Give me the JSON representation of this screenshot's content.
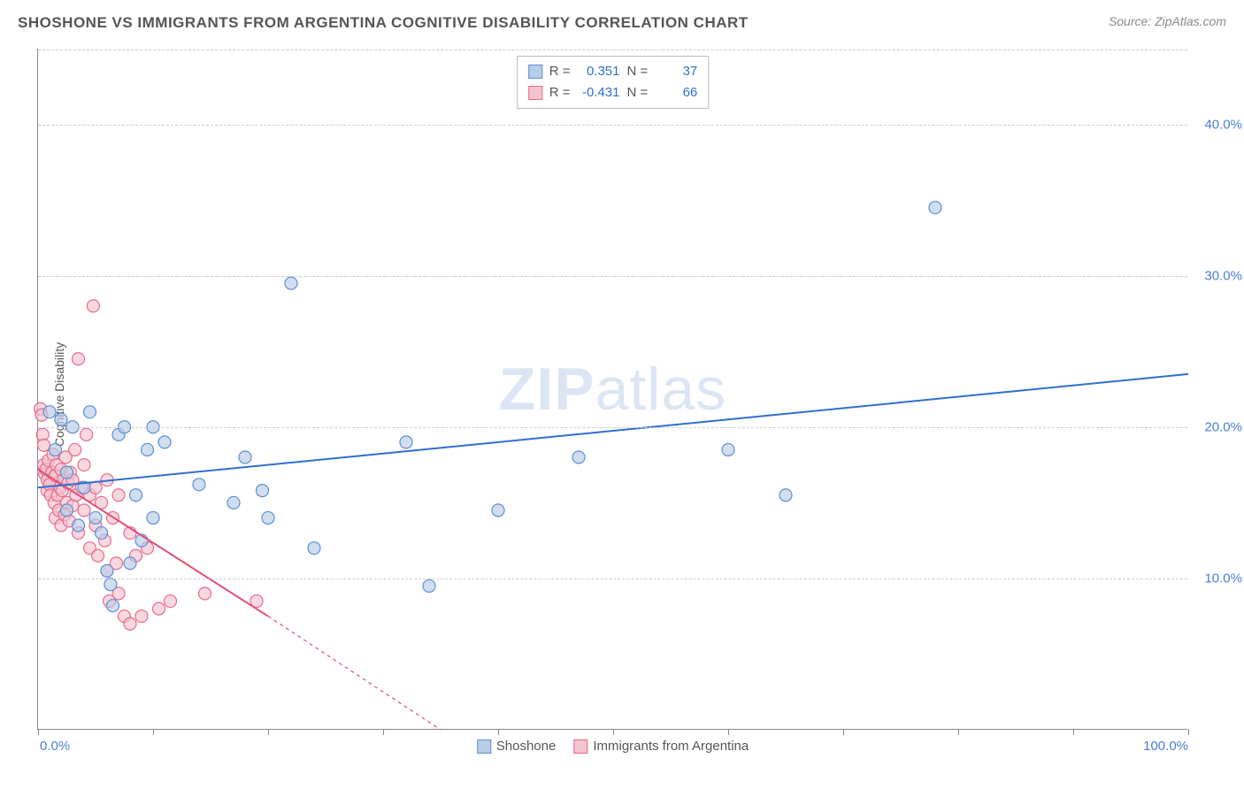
{
  "title": "SHOSHONE VS IMMIGRANTS FROM ARGENTINA COGNITIVE DISABILITY CORRELATION CHART",
  "source_prefix": "Source: ",
  "source": "ZipAtlas.com",
  "ylabel": "Cognitive Disability",
  "watermark_a": "ZIP",
  "watermark_b": "atlas",
  "chart": {
    "type": "scatter",
    "xlim": [
      0,
      100
    ],
    "ylim": [
      0,
      45
    ],
    "xtick_positions": [
      0,
      10,
      20,
      30,
      40,
      50,
      60,
      70,
      80,
      90,
      100
    ],
    "xtick_labels": {
      "0": "0.0%",
      "100": "100.0%"
    },
    "ytick_positions": [
      10,
      20,
      30,
      40
    ],
    "ytick_labels": {
      "10": "10.0%",
      "20": "20.0%",
      "30": "30.0%",
      "40": "40.0%"
    },
    "xtick_color": "#4a7fd6",
    "grid_color": "#cccccc",
    "axis_color": "#888888",
    "background": "#ffffff",
    "marker_radius": 7,
    "marker_stroke_width": 1.2,
    "line_width": 2,
    "series": [
      {
        "name": "Shoshone",
        "fill": "#b8cde8",
        "stroke": "#5b8fd6",
        "line_color": "#2f6fd0",
        "stats": {
          "R": "0.351",
          "N": "37"
        },
        "regression": {
          "x1": 0,
          "y1": 16.0,
          "x2": 100,
          "y2": 23.5
        },
        "points": [
          [
            1,
            21
          ],
          [
            1.5,
            18.5
          ],
          [
            2,
            20.5
          ],
          [
            2.5,
            17
          ],
          [
            2.5,
            14.5
          ],
          [
            3,
            20
          ],
          [
            3.5,
            13.5
          ],
          [
            4,
            16
          ],
          [
            4.5,
            21
          ],
          [
            5,
            14
          ],
          [
            5.5,
            13
          ],
          [
            6,
            10.5
          ],
          [
            6.3,
            9.6
          ],
          [
            6.5,
            8.2
          ],
          [
            7,
            19.5
          ],
          [
            7.5,
            20
          ],
          [
            8,
            11
          ],
          [
            8.5,
            15.5
          ],
          [
            9,
            12.5
          ],
          [
            9.5,
            18.5
          ],
          [
            10,
            20
          ],
          [
            10,
            14
          ],
          [
            11,
            19
          ],
          [
            14,
            16.2
          ],
          [
            17,
            15
          ],
          [
            18,
            18
          ],
          [
            19.5,
            15.8
          ],
          [
            20,
            14
          ],
          [
            22,
            29.5
          ],
          [
            24,
            12
          ],
          [
            32,
            19
          ],
          [
            34,
            9.5
          ],
          [
            40,
            14.5
          ],
          [
            47,
            18
          ],
          [
            60,
            18.5
          ],
          [
            65,
            15.5
          ],
          [
            78,
            34.5
          ]
        ]
      },
      {
        "name": "Immigrants from Argentina",
        "fill": "#f5c3cf",
        "stroke": "#e86a8a",
        "line_color": "#e24d74",
        "stats": {
          "R": "-0.431",
          "N": "66"
        },
        "regression": {
          "x1": 0,
          "y1": 17.2,
          "x2": 20,
          "y2": 7.5
        },
        "regression_ext": {
          "x1": 20,
          "y1": 7.5,
          "x2": 35,
          "y2": 0
        },
        "points": [
          [
            0.2,
            21.2
          ],
          [
            0.3,
            20.8
          ],
          [
            0.4,
            19.5
          ],
          [
            0.5,
            18.8
          ],
          [
            0.5,
            17.5
          ],
          [
            0.6,
            16.9
          ],
          [
            0.7,
            17.2
          ],
          [
            0.8,
            16.5
          ],
          [
            0.8,
            15.8
          ],
          [
            0.9,
            17.8
          ],
          [
            1.0,
            16.2
          ],
          [
            1.1,
            15.5
          ],
          [
            1.2,
            17.0
          ],
          [
            1.3,
            18.2
          ],
          [
            1.4,
            15.0
          ],
          [
            1.5,
            16.8
          ],
          [
            1.5,
            14.0
          ],
          [
            1.6,
            17.5
          ],
          [
            1.7,
            15.5
          ],
          [
            1.8,
            14.5
          ],
          [
            1.9,
            16.0
          ],
          [
            2.0,
            17.2
          ],
          [
            2.0,
            13.5
          ],
          [
            2.1,
            15.8
          ],
          [
            2.2,
            16.5
          ],
          [
            2.3,
            14.2
          ],
          [
            2.4,
            18.0
          ],
          [
            2.5,
            15.0
          ],
          [
            2.6,
            16.3
          ],
          [
            2.7,
            13.8
          ],
          [
            2.8,
            17.0
          ],
          [
            3.0,
            16.5
          ],
          [
            3.0,
            14.8
          ],
          [
            3.2,
            18.5
          ],
          [
            3.3,
            15.5
          ],
          [
            3.5,
            24.5
          ],
          [
            3.5,
            13.0
          ],
          [
            3.8,
            16.0
          ],
          [
            4.0,
            17.5
          ],
          [
            4.0,
            14.5
          ],
          [
            4.2,
            19.5
          ],
          [
            4.5,
            15.5
          ],
          [
            4.5,
            12.0
          ],
          [
            4.8,
            28.0
          ],
          [
            5.0,
            16.0
          ],
          [
            5.0,
            13.5
          ],
          [
            5.2,
            11.5
          ],
          [
            5.5,
            15.0
          ],
          [
            5.8,
            12.5
          ],
          [
            6.0,
            16.5
          ],
          [
            6.0,
            10.5
          ],
          [
            6.2,
            8.5
          ],
          [
            6.5,
            14.0
          ],
          [
            6.8,
            11.0
          ],
          [
            7.0,
            15.5
          ],
          [
            7.0,
            9.0
          ],
          [
            7.5,
            7.5
          ],
          [
            8.0,
            13.0
          ],
          [
            8.0,
            7.0
          ],
          [
            8.5,
            11.5
          ],
          [
            9.0,
            7.5
          ],
          [
            9.5,
            12.0
          ],
          [
            10.5,
            8.0
          ],
          [
            11.5,
            8.5
          ],
          [
            14.5,
            9.0
          ],
          [
            19.0,
            8.5
          ]
        ]
      }
    ]
  },
  "legend_bottom": [
    {
      "label": "Shoshone",
      "fill": "#b8cde8",
      "stroke": "#5b8fd6"
    },
    {
      "label": "Immigrants from Argentina",
      "fill": "#f5c3cf",
      "stroke": "#e86a8a"
    }
  ],
  "legend_top_rows": [
    {
      "swatch_fill": "#b8cde8",
      "swatch_stroke": "#5b8fd6",
      "r_label": "R =",
      "r_val": "0.351",
      "n_label": "N =",
      "n_val": "37",
      "val_color": "#2f6fd0"
    },
    {
      "swatch_fill": "#f5c3cf",
      "swatch_stroke": "#e86a8a",
      "r_label": "R =",
      "r_val": "-0.431",
      "n_label": "N =",
      "n_val": "66",
      "val_color": "#2f6fd0"
    }
  ]
}
